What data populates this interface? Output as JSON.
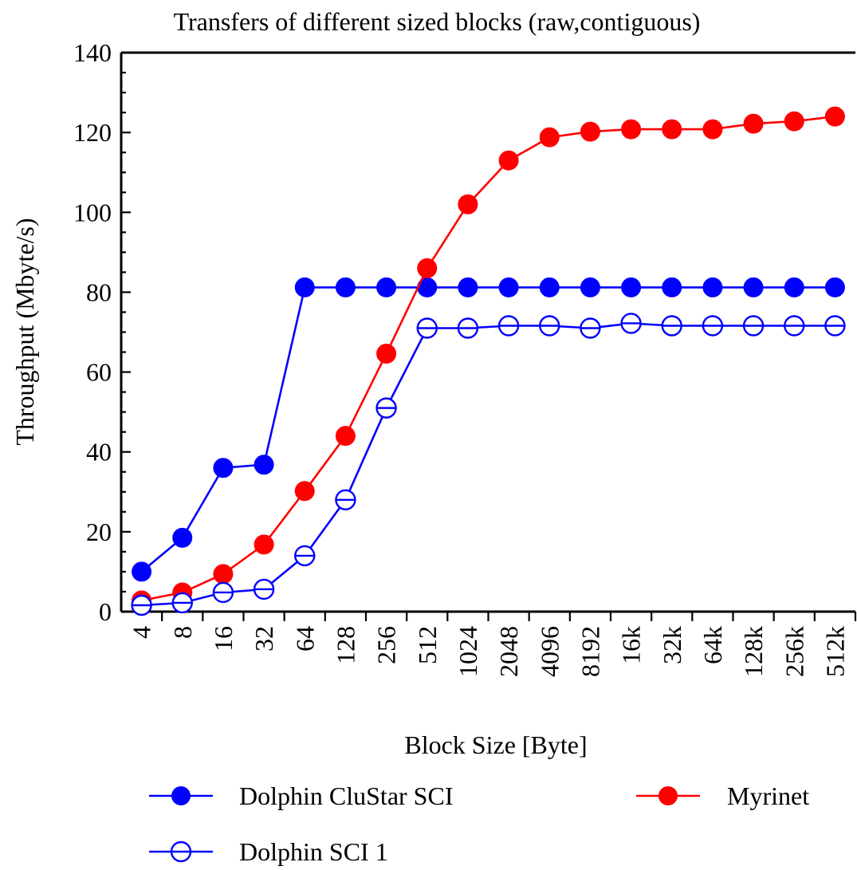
{
  "chart_data": {
    "type": "line",
    "title": "Transfers of different sized blocks (raw,contiguous)",
    "xlabel": "Block Size [Byte]",
    "ylabel": "Throughput (Mbyte/s)",
    "categories": [
      "4",
      "8",
      "16",
      "32",
      "64",
      "128",
      "256",
      "512",
      "1024",
      "2048",
      "4096",
      "8192",
      "16k",
      "32k",
      "64k",
      "128k",
      "256k",
      "512k"
    ],
    "ylim": [
      0,
      140
    ],
    "yticks": [
      "0",
      "20",
      "40",
      "60",
      "80",
      "100",
      "120",
      "140"
    ],
    "grid": false,
    "legend_position": "bottom",
    "series": [
      {
        "name": "Dolphin CluStar SCI",
        "color": "#0000ff",
        "marker": "filled-circle",
        "values": [
          10,
          18.5,
          36,
          36.8,
          81.2,
          81.2,
          81.2,
          81.2,
          81.2,
          81.2,
          81.2,
          81.2,
          81.2,
          81.2,
          81.2,
          81.2,
          81.2,
          81.2
        ]
      },
      {
        "name": "Myrinet",
        "color": "#ff0000",
        "marker": "filled-circle",
        "values": [
          2.8,
          4.8,
          9.4,
          16.8,
          30.2,
          44,
          64.6,
          86,
          102,
          113,
          118.8,
          120.2,
          120.8,
          120.8,
          120.8,
          122.2,
          122.8,
          124
        ]
      },
      {
        "name": "Dolphin SCI 1",
        "color": "#0000ff",
        "marker": "open-circle",
        "values": [
          1.6,
          2.2,
          4.8,
          5.6,
          14,
          28,
          51,
          71,
          71,
          71.6,
          71.6,
          71,
          72.2,
          71.6,
          71.6,
          71.6,
          71.6,
          71.6
        ]
      }
    ]
  }
}
